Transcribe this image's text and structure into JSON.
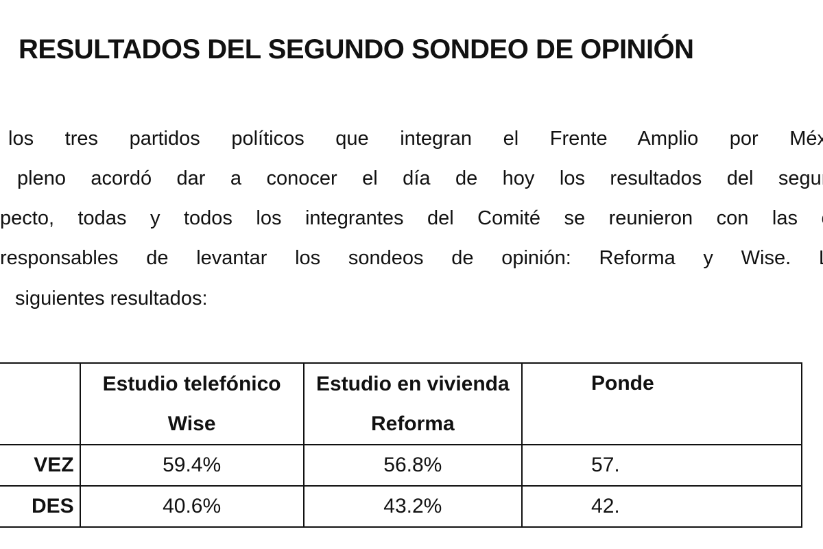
{
  "title": "RESULTADOS DEL SEGUNDO SONDEO DE OPINIÓN",
  "paragraph_lines": [
    "los tres partidos políticos que integran el Frente Amplio por Méxic",
    "pleno acordó dar a conocer el día de hoy los resultados del segund",
    "pecto, todas y todos los integrantes del Comité se reunieron con las c",
    "responsables de levantar los sondeos de opinión: Reforma y Wise. L",
    "siguientes resultados:"
  ],
  "table": {
    "headers": [
      {
        "line1": "",
        "line2": ""
      },
      {
        "line1": "Estudio telefónico",
        "line2": "Wise"
      },
      {
        "line1": "Estudio en vivienda",
        "line2": "Reforma"
      },
      {
        "line1": "Ponde",
        "line2": ""
      }
    ],
    "rows": [
      {
        "name": "VEZ",
        "values": [
          "59.4%",
          "56.8%",
          "57."
        ]
      },
      {
        "name": "DES",
        "values": [
          "40.6%",
          "43.2%",
          "42."
        ]
      }
    ]
  }
}
